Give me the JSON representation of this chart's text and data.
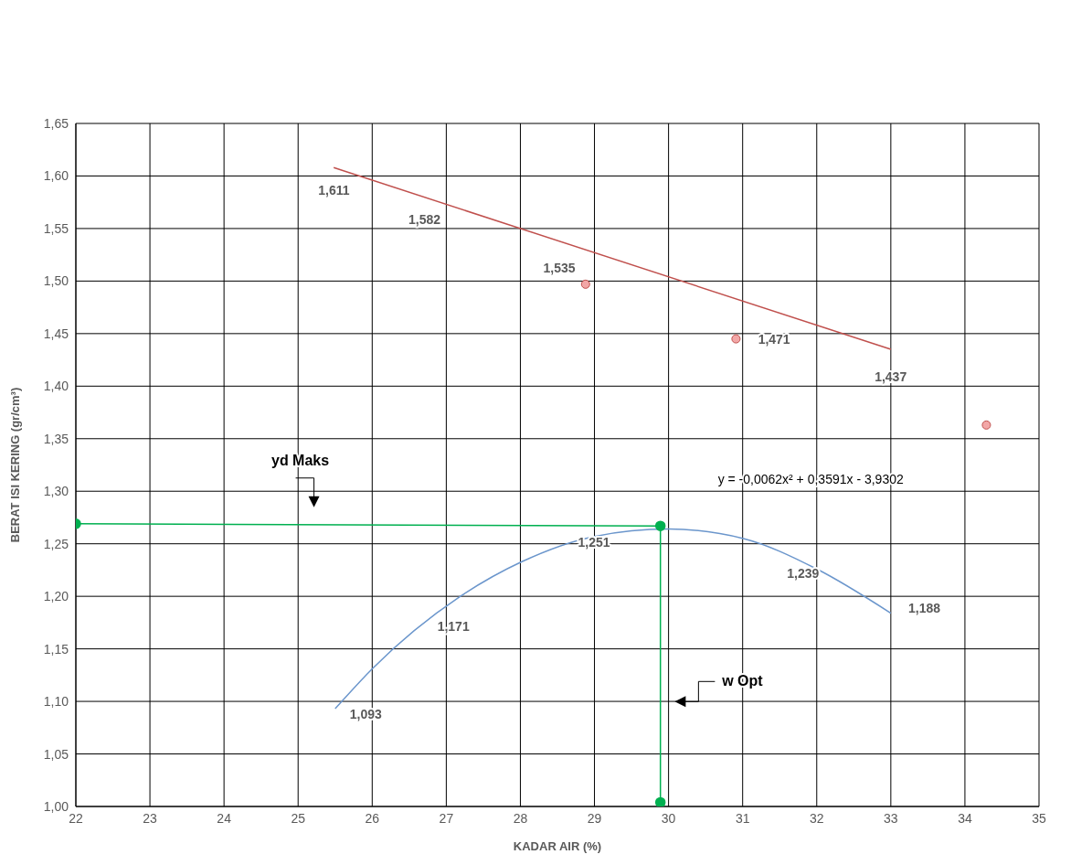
{
  "chart_data": {
    "type": "line",
    "xlabel": "KADAR AIR (%)",
    "ylabel": "BERAT ISI KERING (gr/cm³)",
    "xlim": [
      22,
      35
    ],
    "xticks": [
      22,
      23,
      24,
      25,
      26,
      27,
      28,
      29,
      30,
      31,
      32,
      33,
      34,
      35
    ],
    "ylim": [
      1.0,
      1.65
    ],
    "yticks": [
      {
        "value": 1.0,
        "label": "1,00"
      },
      {
        "value": 1.05,
        "label": "1,05"
      },
      {
        "value": 1.1,
        "label": "1,10"
      },
      {
        "value": 1.15,
        "label": "1,15"
      },
      {
        "value": 1.2,
        "label": "1,20"
      },
      {
        "value": 1.25,
        "label": "1,25"
      },
      {
        "value": 1.3,
        "label": "1,30"
      },
      {
        "value": 1.35,
        "label": "1,35"
      },
      {
        "value": 1.4,
        "label": "1,40"
      },
      {
        "value": 1.45,
        "label": "1,45"
      },
      {
        "value": 1.5,
        "label": "1,50"
      },
      {
        "value": 1.55,
        "label": "1,55"
      },
      {
        "value": 1.6,
        "label": "1,60"
      },
      {
        "value": 1.65,
        "label": "1,65"
      }
    ],
    "grid": true,
    "series": [
      {
        "color": "#c0504d",
        "marker": "none",
        "x": [
          25.48,
          33.0
        ],
        "values": [
          1.608,
          1.435
        ]
      },
      {
        "type": "scatter",
        "color": "#f2a7a7",
        "marker": "circle",
        "x": [
          28.88,
          30.91,
          34.29
        ],
        "values": [
          1.497,
          1.445,
          1.363
        ]
      },
      {
        "color": "#6b96cc",
        "marker": "none",
        "x": [
          25.5,
          26.0,
          27.19,
          28.02,
          29.0,
          30.0,
          31.01,
          32.0,
          33.0
        ],
        "values": [
          1.093,
          1.131,
          1.2,
          1.233,
          1.257,
          1.264,
          1.255,
          1.226,
          1.184
        ]
      },
      {
        "color": "#00b050",
        "marker": "circle",
        "x": [
          22,
          29.89,
          29.89
        ],
        "values": [
          1.269,
          1.267,
          1.004
        ]
      }
    ],
    "annotations": [
      "1,611",
      "1,582",
      "1,535",
      "1,471",
      "1,437",
      "1,251",
      "1,171",
      "1,093",
      "1,239",
      "1,188",
      "y = -0,0062x² + 0,3591x - 3,9302",
      "yd Maks",
      "w Opt"
    ]
  }
}
